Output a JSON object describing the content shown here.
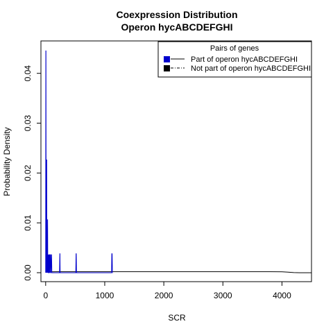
{
  "chart_data": {
    "type": "line",
    "title": "Coexpression Distribution",
    "subtitle": "Operon hycABCDEFGHI",
    "xlabel": "SCR",
    "ylabel": "Probability Density",
    "xlim": [
      -80,
      4500
    ],
    "ylim": [
      -0.0018,
      0.0465
    ],
    "xticks": [
      0,
      1000,
      2000,
      3000,
      4000
    ],
    "xtick_labels": [
      "0",
      "1000",
      "2000",
      "3000",
      "4000"
    ],
    "yticks": [
      0.0,
      0.01,
      0.02,
      0.03,
      0.04
    ],
    "ytick_labels": [
      "0.00",
      "0.01",
      "0.02",
      "0.03",
      "0.04"
    ],
    "grid": false,
    "legend": {
      "title": "Pairs of genes",
      "placement": "top-right",
      "entries": [
        {
          "label": "Part of operon hycABCDEFGHI",
          "color": "#0000ff",
          "line": "solid"
        },
        {
          "label": "Not part of operon hycABCDEFGHI",
          "color": "#000000",
          "line": "dashdot"
        }
      ]
    },
    "series": [
      {
        "name": "Part of operon hycABCDEFGHI",
        "color": "#0000cc",
        "x": [
          0,
          3,
          5,
          8,
          10,
          12,
          15,
          18,
          20,
          23,
          25,
          28,
          30,
          33,
          36,
          40,
          44,
          48,
          50,
          53,
          56,
          58,
          60,
          63,
          66,
          70,
          75,
          80,
          85,
          90,
          95,
          100,
          105,
          110,
          120,
          200,
          235,
          240,
          242,
          245,
          250,
          300,
          500,
          510,
          515,
          518,
          522,
          530,
          1100,
          1115,
          1120,
          1125,
          1130,
          1135
        ],
        "y": [
          0.0,
          0.0445,
          0.0445,
          0.003,
          0.0015,
          0.0,
          0.0225,
          0.0227,
          0.0,
          0.0035,
          0.0022,
          0.0,
          0.0055,
          0.0107,
          0.0,
          0.0035,
          0.0036,
          0.0,
          0.0,
          0.0036,
          0.0036,
          0.0,
          0.0,
          0.0036,
          0.0036,
          0.0,
          0.0036,
          0.0036,
          0.0,
          0.0,
          0.0036,
          0.0036,
          0.0,
          0.0,
          0.0,
          0.0,
          0.0,
          0.0038,
          0.0038,
          0.0,
          0.0,
          0.0,
          0.0,
          0.0,
          0.0038,
          0.0038,
          0.0,
          0.0,
          0.0,
          0.0,
          0.0038,
          0.0038,
          0.0,
          0.0
        ]
      },
      {
        "name": "Not part of operon hycABCDEFGHI",
        "color": "#000000",
        "x": [
          0,
          50,
          200,
          500,
          1000,
          1500,
          2000,
          2500,
          3000,
          3500,
          3800,
          4000,
          4100,
          4200,
          4300,
          4400,
          4500
        ],
        "y": [
          0.00015,
          0.00018,
          0.0002,
          0.0002,
          0.0002,
          0.0002,
          0.0002,
          0.0002,
          0.0002,
          0.0002,
          0.0002,
          0.00018,
          0.00012,
          3e-05,
          0.0,
          0.0,
          0.0
        ]
      }
    ]
  }
}
